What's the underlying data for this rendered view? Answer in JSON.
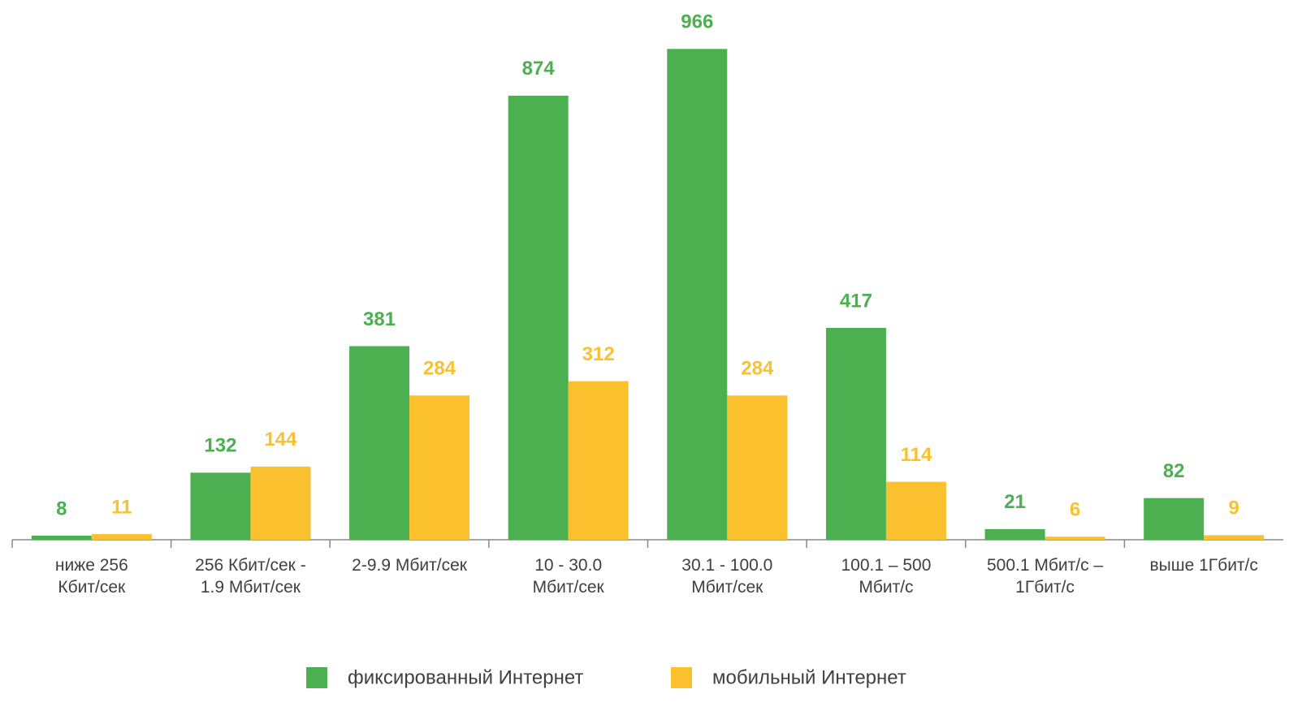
{
  "chart_data": {
    "type": "bar",
    "categories": [
      "ниже 256\nКбит/сек",
      "256 Кбит/сек -\n1.9 Мбит/сек",
      "2-9.9 Мбит/сек",
      "10 - 30.0\nМбит/сек",
      "30.1 - 100.0\nМбит/сек",
      "100.1 – 500\nМбит/с",
      "500.1 Мбит/с –\n1Гбит/с",
      "выше 1Гбит/с"
    ],
    "series": [
      {
        "name": "фиксированный Интернет",
        "color": "#4caf50",
        "values": [
          8,
          132,
          381,
          874,
          966,
          417,
          21,
          82
        ]
      },
      {
        "name": "мобильный Интернет",
        "color": "#fbc02d",
        "values": [
          11,
          144,
          284,
          312,
          284,
          114,
          6,
          9
        ]
      }
    ],
    "ylim": [
      0,
      1000
    ],
    "legend": "bottom"
  }
}
